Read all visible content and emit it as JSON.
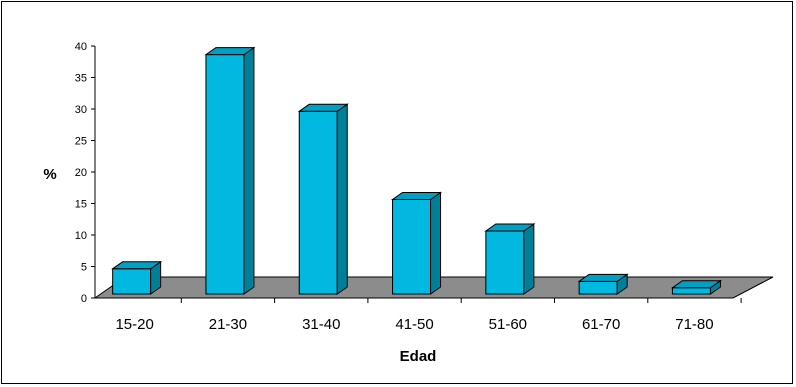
{
  "chart_data": {
    "type": "bar",
    "style": "3d-column",
    "categories": [
      "15-20",
      "21-30",
      "31-40",
      "41-50",
      "51-60",
      "61-70",
      "71-80"
    ],
    "values": [
      4,
      38,
      29,
      15,
      10,
      2,
      1
    ],
    "xlabel": "Edad",
    "ylabel": "%",
    "ylim": [
      0,
      40
    ],
    "yticks": [
      0,
      5,
      10,
      15,
      20,
      25,
      30,
      35,
      40
    ],
    "grid": false,
    "legend": "none",
    "colors": {
      "bar_front": "#00b8e0",
      "bar_side": "#007f99",
      "bar_top": "#00a0c4",
      "floor": "#8c8c8c",
      "outline": "#000000"
    }
  }
}
